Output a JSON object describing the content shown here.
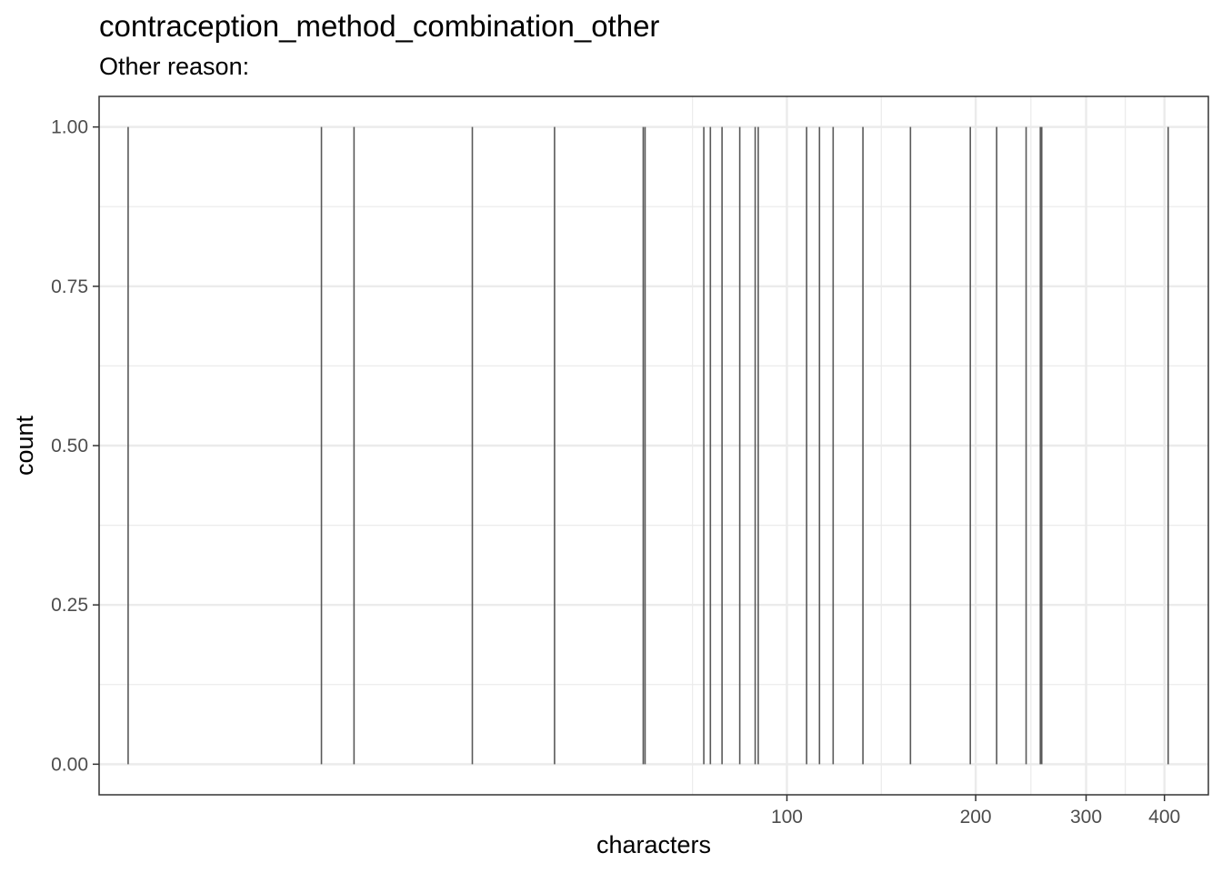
{
  "chart_data": {
    "type": "bar",
    "title": "contraception_method_combination_other",
    "subtitle": "Other reason:",
    "xlabel": "characters",
    "ylabel": "count",
    "x_scale": "log10",
    "xlim": [
      8.0,
      470
    ],
    "ylim": [
      -0.048,
      1.048
    ],
    "x_ticks": [
      100,
      200,
      300,
      400
    ],
    "y_ticks": [
      0.0,
      0.25,
      0.5,
      0.75,
      1.0
    ],
    "y_tick_labels": [
      "0.00",
      "0.25",
      "0.50",
      "0.75",
      "1.00"
    ],
    "grid": true,
    "series": [
      {
        "x": [
          8.9,
          18.1,
          20.4,
          31.5,
          42.6,
          59.0,
          59.4,
          73.7,
          75.5,
          78.8,
          84.1,
          89.0,
          90.0,
          107.5,
          112.7,
          118.5,
          132.2,
          157.4,
          196.1,
          216.0,
          240.7,
          253.6,
          254.9,
          405.5
        ],
        "values": [
          1,
          1,
          1,
          1,
          1,
          1,
          1,
          1,
          1,
          1,
          1,
          1,
          1,
          1,
          1,
          1,
          1,
          1,
          1,
          1,
          1,
          1,
          1,
          1
        ]
      }
    ]
  }
}
